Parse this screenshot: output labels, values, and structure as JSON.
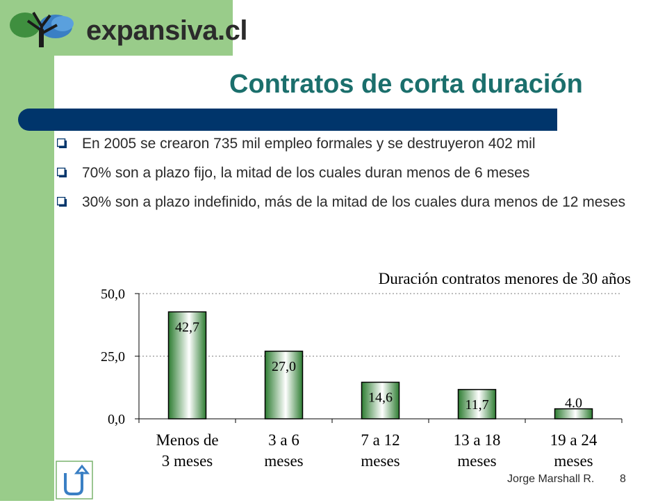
{
  "logo": {
    "text": "expansiva.cl"
  },
  "slide": {
    "title": "Contratos de corta duración"
  },
  "bullets": [
    "En 2005 se crearon 735 mil empleo formales y se destruyeron 402 mil",
    "70% son a plazo fijo, la mitad de los cuales duran menos de 6 meses",
    "30% son a plazo indefinido, más de la mitad de los cuales dura menos de 12 meses"
  ],
  "footer": {
    "author": "Jorge Marshall R.",
    "page": "8"
  },
  "colors": {
    "accent": "#1b6f6c",
    "title_bar": "#00356b",
    "side": "#99cc8a",
    "bar_dark": "#2e7d32",
    "bar_light": "#ffffff"
  },
  "chart_data": {
    "type": "bar",
    "title": "Duración contratos menores de 30 años",
    "categories": [
      "Menos de 3 meses",
      "3 a 6 meses",
      "7 a 12 meses",
      "13 a 18 meses",
      "19 a 24 meses"
    ],
    "category_lines": [
      [
        "Menos de",
        "3 meses"
      ],
      [
        "3 a 6",
        "meses"
      ],
      [
        "7 a 12",
        "meses"
      ],
      [
        "13 a 18",
        "meses"
      ],
      [
        "19 a 24",
        "meses"
      ]
    ],
    "values": [
      42.7,
      27.0,
      14.6,
      11.7,
      4.0
    ],
    "value_labels": [
      "42,7",
      "27,0",
      "14,6",
      "11,7",
      "4.0"
    ],
    "yticks": [
      0,
      25,
      50
    ],
    "ytick_labels": [
      "0,0",
      "25,0",
      "50,0"
    ],
    "ylim": [
      0,
      50
    ],
    "grid": true,
    "legend": "none"
  }
}
